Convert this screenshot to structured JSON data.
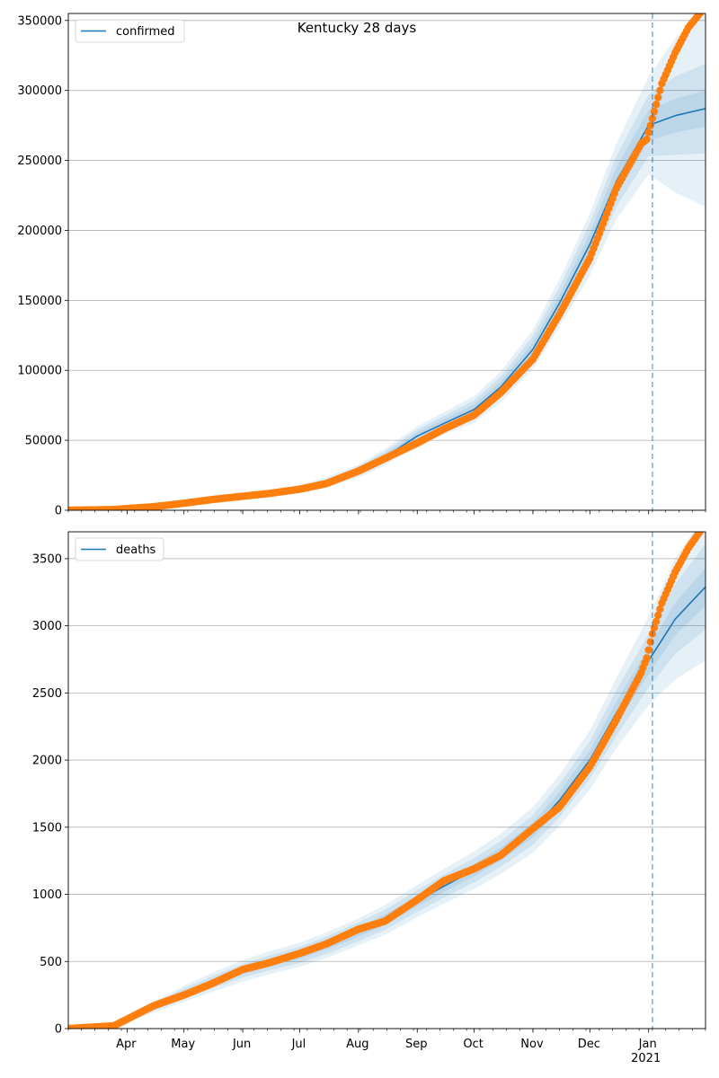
{
  "figure": {
    "title": "Kentucky 28 days"
  },
  "colors": {
    "model_line": "#1f77b4",
    "band": "#1f77b4",
    "observed": "#ff7f0e",
    "today_line": "#1f77b4",
    "grid": "#b0b0b0"
  },
  "x_axis": {
    "tick_labels": [
      "Apr",
      "May",
      "Jun",
      "Jul",
      "Aug",
      "Sep",
      "Oct",
      "Nov",
      "Dec",
      "Jan"
    ],
    "year_label": "2021"
  },
  "chart_data": [
    {
      "type": "line",
      "title": "Kentucky 28 days",
      "legend": {
        "label": "confirmed",
        "placement": "top-left"
      },
      "x_range": [
        "2020-03-01",
        "2021-01-31"
      ],
      "today_marker": "2021-01-03",
      "ylim": [
        0,
        355000
      ],
      "y_ticks": [
        0,
        50000,
        100000,
        150000,
        200000,
        250000,
        300000,
        350000
      ],
      "y_tick_labels": [
        "0",
        "50000",
        "100000",
        "150000",
        "200000",
        "250000",
        "300000",
        "350000"
      ],
      "grid": "horizontal",
      "model": {
        "dates": [
          "2020-03-01",
          "2020-03-25",
          "2020-04-15",
          "2020-05-01",
          "2020-05-15",
          "2020-06-01",
          "2020-06-15",
          "2020-07-01",
          "2020-07-15",
          "2020-08-01",
          "2020-08-15",
          "2020-09-01",
          "2020-09-15",
          "2020-10-01",
          "2020-10-15",
          "2020-11-01",
          "2020-11-15",
          "2020-12-01",
          "2020-12-15",
          "2021-01-01",
          "2021-01-15",
          "2021-01-31"
        ],
        "values": [
          0,
          800,
          2500,
          5000,
          7500,
          10000,
          12500,
          15500,
          20000,
          28000,
          38000,
          53000,
          62000,
          72000,
          88000,
          115000,
          148000,
          190000,
          235000,
          275000,
          282000,
          287000
        ],
        "band_half_width": [
          [
            0,
            200,
            400,
            800,
            1200,
            1500,
            2000,
            2500,
            3500,
            4500,
            6000,
            7000,
            8000,
            9500,
            11000,
            14000,
            17000,
            22000,
            27000,
            35000,
            55000,
            70000
          ],
          [
            0,
            100,
            250,
            500,
            800,
            1000,
            1300,
            1700,
            2300,
            3000,
            4000,
            4800,
            5500,
            6500,
            7500,
            9500,
            11500,
            15000,
            18000,
            22000,
            28000,
            32000
          ],
          [
            0,
            50,
            120,
            250,
            400,
            500,
            700,
            900,
            1200,
            1600,
            2200,
            2500,
            3000,
            3500,
            4000,
            5000,
            6000,
            8000,
            10000,
            11000,
            12000,
            13000
          ]
        ]
      },
      "observed": {
        "dates": [
          "2020-03-01",
          "2020-03-25",
          "2020-04-15",
          "2020-05-01",
          "2020-05-15",
          "2020-06-01",
          "2020-06-15",
          "2020-07-01",
          "2020-07-15",
          "2020-08-01",
          "2020-08-15",
          "2020-09-01",
          "2020-09-15",
          "2020-10-01",
          "2020-10-15",
          "2020-11-01",
          "2020-11-15",
          "2020-12-01",
          "2020-12-15",
          "2020-12-28",
          "2020-12-31",
          "2021-01-03",
          "2021-01-08",
          "2021-01-15",
          "2021-01-22",
          "2021-01-28"
        ],
        "values": [
          0,
          500,
          2500,
          5000,
          7500,
          10000,
          12000,
          15000,
          19000,
          28000,
          37000,
          48000,
          58000,
          68000,
          84000,
          108000,
          140000,
          180000,
          230000,
          262000,
          265000,
          280000,
          305000,
          327000,
          345000,
          355000
        ]
      }
    },
    {
      "type": "line",
      "legend": {
        "label": "deaths",
        "placement": "top-left"
      },
      "x_range": [
        "2020-03-01",
        "2021-01-31"
      ],
      "today_marker": "2021-01-03",
      "ylim": [
        0,
        3700
      ],
      "y_ticks": [
        0,
        500,
        1000,
        1500,
        2000,
        2500,
        3000,
        3500
      ],
      "y_tick_labels": [
        "0",
        "500",
        "1000",
        "1500",
        "2000",
        "2500",
        "3000",
        "3500"
      ],
      "grid": "horizontal",
      "model": {
        "dates": [
          "2020-03-01",
          "2020-03-25",
          "2020-04-15",
          "2020-05-01",
          "2020-05-15",
          "2020-06-01",
          "2020-06-15",
          "2020-07-01",
          "2020-07-15",
          "2020-08-01",
          "2020-08-15",
          "2020-09-01",
          "2020-09-15",
          "2020-10-01",
          "2020-10-15",
          "2020-11-01",
          "2020-11-15",
          "2020-12-01",
          "2020-12-15",
          "2021-01-01",
          "2021-01-15",
          "2021-01-31"
        ],
        "values": [
          0,
          20,
          160,
          260,
          340,
          430,
          490,
          550,
          620,
          720,
          810,
          950,
          1060,
          1180,
          1300,
          1480,
          1700,
          2000,
          2350,
          2740,
          3050,
          3290
        ],
        "band_half_width": [
          [
            0,
            5,
            40,
            60,
            70,
            80,
            85,
            90,
            95,
            100,
            110,
            120,
            130,
            140,
            150,
            170,
            190,
            220,
            260,
            330,
            450,
            550
          ],
          [
            0,
            3,
            25,
            40,
            45,
            50,
            55,
            60,
            65,
            70,
            75,
            80,
            85,
            90,
            95,
            110,
            125,
            140,
            170,
            200,
            260,
            320
          ],
          [
            0,
            2,
            12,
            20,
            22,
            25,
            28,
            30,
            32,
            35,
            38,
            40,
            42,
            45,
            48,
            55,
            62,
            70,
            85,
            100,
            120,
            140
          ]
        ]
      },
      "observed": {
        "dates": [
          "2020-03-01",
          "2020-03-25",
          "2020-04-15",
          "2020-05-01",
          "2020-05-15",
          "2020-06-01",
          "2020-06-15",
          "2020-07-01",
          "2020-07-15",
          "2020-08-01",
          "2020-08-15",
          "2020-09-01",
          "2020-09-15",
          "2020-10-01",
          "2020-10-15",
          "2020-11-01",
          "2020-11-15",
          "2020-12-01",
          "2020-12-15",
          "2020-12-28",
          "2020-12-31",
          "2021-01-03",
          "2021-01-08",
          "2021-01-15",
          "2021-01-22",
          "2021-01-28"
        ],
        "values": [
          0,
          20,
          170,
          250,
          330,
          440,
          490,
          560,
          630,
          740,
          800,
          960,
          1100,
          1190,
          1290,
          1490,
          1650,
          1950,
          2300,
          2650,
          2760,
          2940,
          3170,
          3400,
          3580,
          3700
        ]
      }
    }
  ]
}
